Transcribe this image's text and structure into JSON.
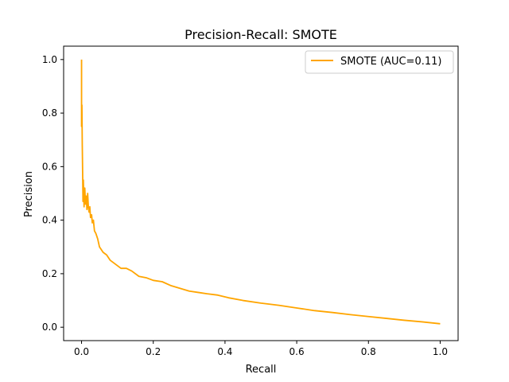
{
  "chart_data": {
    "type": "line",
    "title": "Precision-Recall: SMOTE",
    "xlabel": "Recall",
    "ylabel": "Precision",
    "xlim": [
      -0.05,
      1.05
    ],
    "ylim": [
      -0.05,
      1.05
    ],
    "xticks": [
      0.0,
      0.2,
      0.4,
      0.6,
      0.8,
      1.0
    ],
    "xtick_labels": [
      "0.0",
      "0.2",
      "0.4",
      "0.6",
      "0.8",
      "1.0"
    ],
    "yticks": [
      0.0,
      0.2,
      0.4,
      0.6,
      0.8,
      1.0
    ],
    "ytick_labels": [
      "0.0",
      "0.2",
      "0.4",
      "0.6",
      "0.8",
      "1.0"
    ],
    "grid": false,
    "legend_position": "top-right",
    "series": [
      {
        "name": "SMOTE (AUC=0.11)",
        "color": "#ffa500",
        "points": [
          [
            0.0,
            1.0
          ],
          [
            0.0,
            0.75
          ],
          [
            0.001,
            0.83
          ],
          [
            0.002,
            0.68
          ],
          [
            0.003,
            0.58
          ],
          [
            0.004,
            0.47
          ],
          [
            0.005,
            0.55
          ],
          [
            0.007,
            0.45
          ],
          [
            0.009,
            0.52
          ],
          [
            0.011,
            0.46
          ],
          [
            0.013,
            0.49
          ],
          [
            0.015,
            0.44
          ],
          [
            0.017,
            0.5
          ],
          [
            0.019,
            0.45
          ],
          [
            0.021,
            0.43
          ],
          [
            0.023,
            0.45
          ],
          [
            0.025,
            0.41
          ],
          [
            0.028,
            0.42
          ],
          [
            0.03,
            0.39
          ],
          [
            0.033,
            0.4
          ],
          [
            0.036,
            0.36
          ],
          [
            0.04,
            0.35
          ],
          [
            0.045,
            0.33
          ],
          [
            0.05,
            0.3
          ],
          [
            0.055,
            0.29
          ],
          [
            0.06,
            0.28
          ],
          [
            0.07,
            0.27
          ],
          [
            0.08,
            0.25
          ],
          [
            0.09,
            0.24
          ],
          [
            0.1,
            0.23
          ],
          [
            0.11,
            0.22
          ],
          [
            0.125,
            0.22
          ],
          [
            0.14,
            0.21
          ],
          [
            0.16,
            0.19
          ],
          [
            0.18,
            0.185
          ],
          [
            0.2,
            0.175
          ],
          [
            0.225,
            0.17
          ],
          [
            0.25,
            0.155
          ],
          [
            0.275,
            0.145
          ],
          [
            0.3,
            0.135
          ],
          [
            0.325,
            0.13
          ],
          [
            0.35,
            0.125
          ],
          [
            0.38,
            0.12
          ],
          [
            0.41,
            0.11
          ],
          [
            0.45,
            0.1
          ],
          [
            0.5,
            0.09
          ],
          [
            0.55,
            0.082
          ],
          [
            0.6,
            0.072
          ],
          [
            0.65,
            0.062
          ],
          [
            0.7,
            0.055
          ],
          [
            0.75,
            0.047
          ],
          [
            0.8,
            0.04
          ],
          [
            0.85,
            0.033
          ],
          [
            0.9,
            0.026
          ],
          [
            0.95,
            0.02
          ],
          [
            1.0,
            0.013
          ]
        ]
      }
    ]
  }
}
